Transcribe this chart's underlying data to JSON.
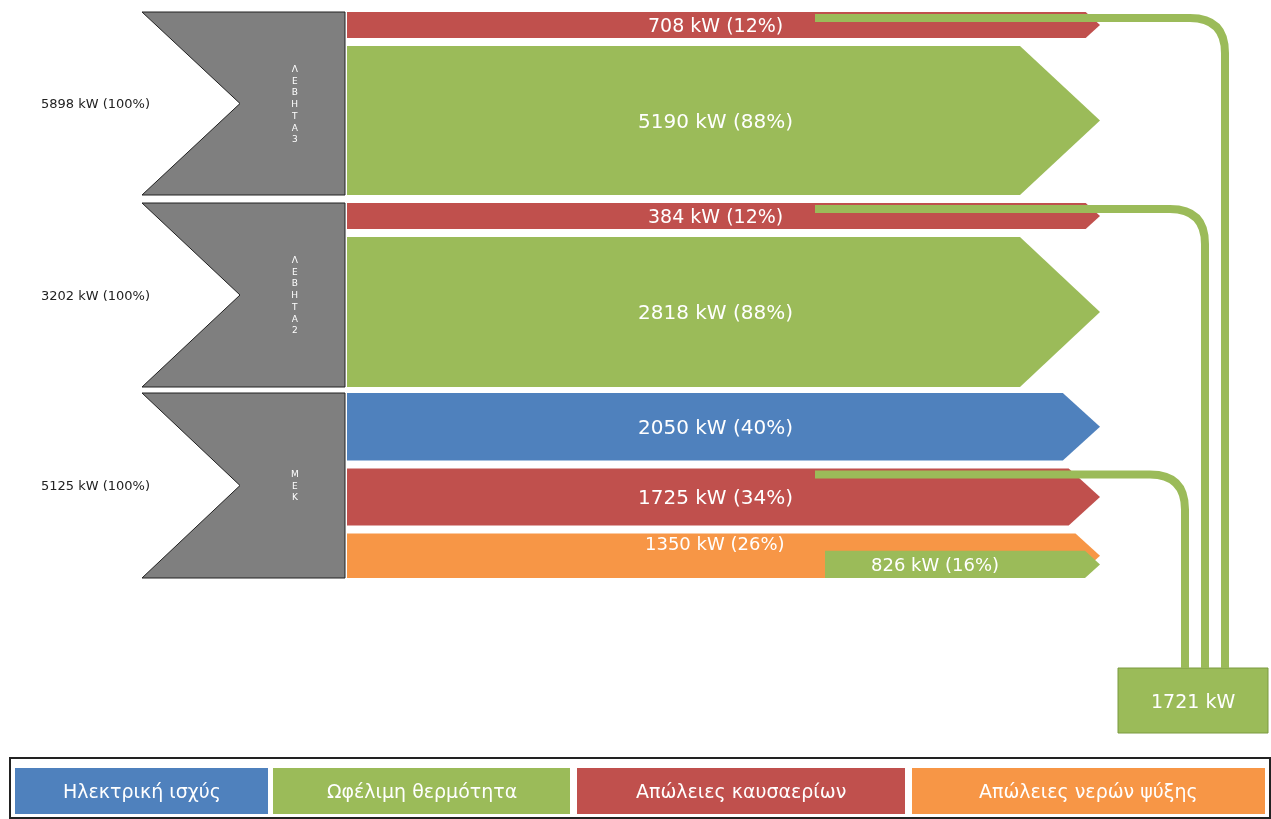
{
  "chart_data": {
    "type": "other",
    "categories": [
      "ΛΕΒΗΤΑ3",
      "ΛΕΒΗΤΑ2",
      "ΜΕΚ"
    ],
    "legend": "bottom",
    "series": [
      {
        "color": "#7f7f7f",
        "values": [
          5898,
          3202,
          5125
        ],
        "value_labels": [
          "5898 kW (100%)",
          "3202 kW (100%)",
          "5125 kW (100%)"
        ]
      },
      {
        "name": "Ηλεκτρική ισχύς",
        "color": "#4f81bd",
        "values": [
          null,
          null,
          2050
        ],
        "value_labels": [
          null,
          null,
          "2050 kW (40%)"
        ]
      },
      {
        "name": "Ωφέλιμη θερμότητα",
        "color": "#9bbb59",
        "values": [
          5190,
          2818,
          null
        ],
        "value_labels": [
          "5190 kW (88%)",
          "2818 kW (88%)",
          null
        ]
      },
      {
        "name": "Απώλειες καυσαερίων",
        "color": "#c0504d",
        "values": [
          708,
          384,
          1725
        ],
        "value_labels": [
          "708 kW (12%)",
          "384 kW (12%)",
          "1725 kW (34%)"
        ]
      },
      {
        "name": "Απώλειες νερών ψύξης",
        "color": "#f79646",
        "values": [
          null,
          null,
          1350
        ],
        "value_labels": [
          null,
          null,
          "1350 kW (26%)"
        ]
      },
      {
        "color": "#9bbb59",
        "values": [
          null,
          null,
          826
        ],
        "value_labels": [
          null,
          null,
          "826 kW (16%)"
        ]
      }
    ],
    "annotations": [
      "1721 kW"
    ]
  }
}
